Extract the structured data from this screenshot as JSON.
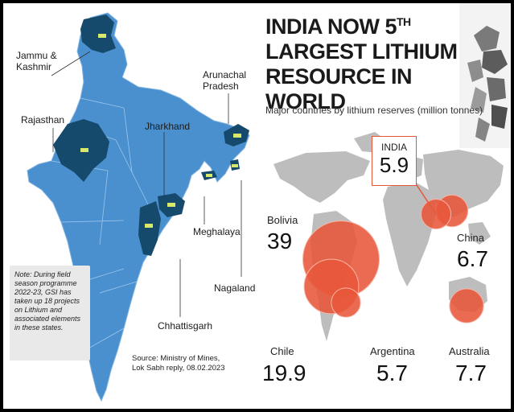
{
  "map_labels": {
    "jk": "Jammu &\nKashmir",
    "rajasthan": "Rajasthan",
    "jharkhand": "Jharkhand",
    "arunachal": "Arunachal\nPradesh",
    "meghalaya": "Meghalaya",
    "nagaland": "Nagaland",
    "chhattisgarh": "Chhattisgarh"
  },
  "note": "Note: During field season programme 2022-23, GSI has taken up 18 projects on Lithium and associated elements in these states.",
  "source": "Source: Ministry of Mines,\nLok Sabh reply, 08.02.2023",
  "colors": {
    "map_light": "#4a90cf",
    "map_dark": "#164a6d",
    "bubble": "#e8563a",
    "world": "#bdbdbd"
  },
  "chart_data": {
    "type": "bubble-map",
    "title": "INDIA NOW 5TH LARGEST LITHIUM RESOURCE IN WORLD",
    "title_lines": [
      "INDIA NOW 5",
      "TH",
      "LARGEST LITHIUM",
      "RESOURCE IN WORLD"
    ],
    "subtitle": "Major countries by lithium reserves (million tonnes)",
    "categories": [
      "India",
      "Bolivia",
      "China",
      "Chile",
      "Argentina",
      "Australia"
    ],
    "labels": [
      "INDIA",
      "Bolivia",
      "China",
      "Chile",
      "Argentina",
      "Australia"
    ],
    "values": [
      5.9,
      39,
      6.7,
      19.9,
      5.7,
      7.7
    ],
    "display_values": [
      "5.9",
      "39",
      "6.7",
      "19.9",
      "5.7",
      "7.7"
    ]
  }
}
